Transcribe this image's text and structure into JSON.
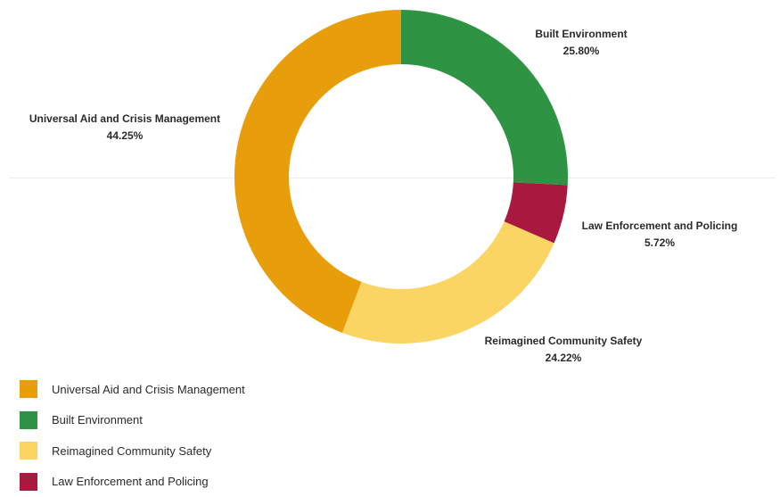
{
  "chart_data": {
    "type": "pie",
    "variant": "donut",
    "slices": [
      {
        "name": "Built Environment",
        "value": 25.8,
        "value_label": "25.80%",
        "color": "#2e9443"
      },
      {
        "name": "Law Enforcement and Policing",
        "value": 5.72,
        "value_label": "5.72%",
        "color": "#a8183f"
      },
      {
        "name": "Reimagined Community Safety",
        "value": 24.22,
        "value_label": "24.22%",
        "color": "#fad563"
      },
      {
        "name": "Universal Aid and Crisis Management",
        "value": 44.25,
        "value_label": "44.25%",
        "color": "#e89d0a"
      }
    ],
    "legend_position": "bottom-left",
    "legend": [
      {
        "label": "Universal Aid and Crisis Management",
        "color": "#e89d0a"
      },
      {
        "label": "Built Environment",
        "color": "#2e9443"
      },
      {
        "label": "Reimagined Community Safety",
        "color": "#fad563"
      },
      {
        "label": "Law Enforcement and Policing",
        "color": "#a8183f"
      }
    ]
  }
}
